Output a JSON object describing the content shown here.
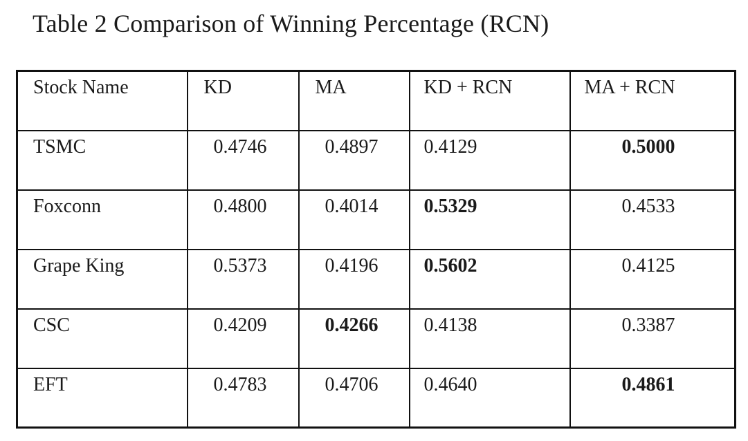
{
  "caption": "Table 2 Comparison of Winning Percentage (RCN)",
  "table": {
    "headers": [
      "Stock Name",
      "KD",
      "MA",
      "KD + RCN",
      "MA + RCN"
    ],
    "rows": [
      {
        "name": "TSMC",
        "kd": "0.4746",
        "ma": "0.4897",
        "kd_rcn": "0.4129",
        "ma_rcn": "0.5000",
        "best": "ma_rcn"
      },
      {
        "name": "Foxconn",
        "kd": "0.4800",
        "ma": "0.4014",
        "kd_rcn": "0.5329",
        "ma_rcn": "0.4533",
        "best": "kd_rcn"
      },
      {
        "name": "Grape King",
        "kd": "0.5373",
        "ma": "0.4196",
        "kd_rcn": "0.5602",
        "ma_rcn": "0.4125",
        "best": "kd_rcn"
      },
      {
        "name": "CSC",
        "kd": "0.4209",
        "ma": "0.4266",
        "kd_rcn": "0.4138",
        "ma_rcn": "0.3387",
        "best": "ma"
      },
      {
        "name": "EFT",
        "kd": "0.4783",
        "ma": "0.4706",
        "kd_rcn": "0.4640",
        "ma_rcn": "0.4861",
        "best": "ma_rcn"
      }
    ]
  }
}
